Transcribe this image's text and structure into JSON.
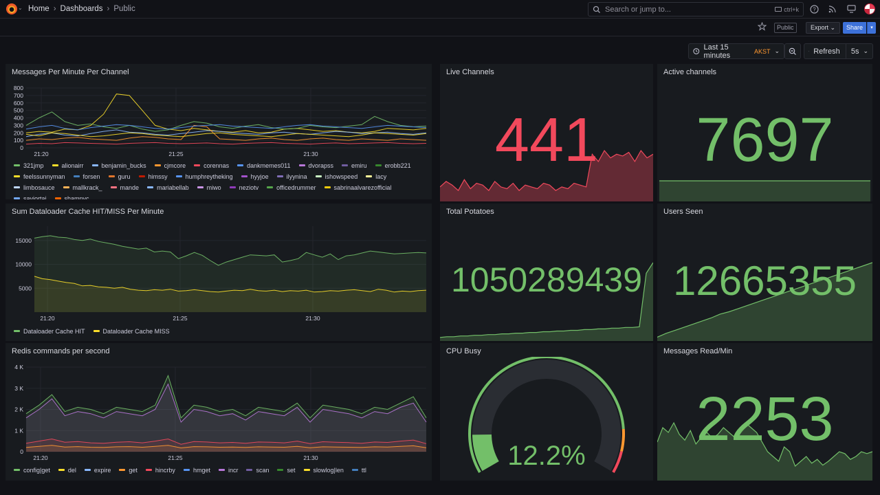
{
  "nav": {
    "breadcrumbs": [
      "Home",
      "Dashboards",
      "Public"
    ],
    "search_placeholder": "Search or jump to...",
    "search_shortcut": "ctrl+k"
  },
  "toolbar": {
    "public_tag": "Public",
    "export_label": "Export",
    "share_label": "Share",
    "time_range": "Last 15 minutes",
    "timezone": "AKST",
    "refresh_label": "Refresh",
    "refresh_interval": "5s"
  },
  "icons": [
    "grafana-logo-icon",
    "search-icon",
    "help-icon",
    "rss-icon",
    "monitor-icon",
    "star-icon",
    "clock-icon",
    "zoom-out-icon",
    "refresh-icon",
    "chevron-down-icon"
  ],
  "colors": {
    "red_stat": "#f2495c",
    "green_stat": "#73bf69",
    "gauge_orange": "#ff9830",
    "gauge_red": "#f2495c",
    "accent_blue": "#3d71d9"
  },
  "panels": {
    "messages": {
      "title": "Messages Per Minute Per Channel",
      "legend": [
        {
          "name": "321jmp",
          "color": "#73bf69"
        },
        {
          "name": "alionairr",
          "color": "#fade2a"
        },
        {
          "name": "benjamin_bucks",
          "color": "#8ab8ff"
        },
        {
          "name": "cjmcore",
          "color": "#ff9830"
        },
        {
          "name": "corennas",
          "color": "#f2495c"
        },
        {
          "name": "dankmemes011",
          "color": "#5794f2"
        },
        {
          "name": "dvorapss",
          "color": "#b877d9"
        },
        {
          "name": "emiru",
          "color": "#705da0"
        },
        {
          "name": "erobb221",
          "color": "#37872d"
        },
        {
          "name": "feelssunnyman",
          "color": "#fade2a"
        },
        {
          "name": "forsen",
          "color": "#447ebc"
        },
        {
          "name": "guru",
          "color": "#e0752d"
        },
        {
          "name": "himssy",
          "color": "#bf1b00"
        },
        {
          "name": "humphreytheking",
          "color": "#5794f2"
        },
        {
          "name": "hyyjoe",
          "color": "#a352cc"
        },
        {
          "name": "ilyynina",
          "color": "#806eb7"
        },
        {
          "name": "ishowspeed",
          "color": "#c8f2c2"
        },
        {
          "name": "lacy",
          "color": "#fff899"
        },
        {
          "name": "limbosauce",
          "color": "#c0d8ff"
        },
        {
          "name": "mallkrack_",
          "color": "#ffb357"
        },
        {
          "name": "mande",
          "color": "#ff7383"
        },
        {
          "name": "mariabellab",
          "color": "#8ab8ff"
        },
        {
          "name": "miwo",
          "color": "#ca95e5"
        },
        {
          "name": "neziotv",
          "color": "#8f3bb8"
        },
        {
          "name": "officedrummer",
          "color": "#56a64b"
        },
        {
          "name": "sabrinaalvarezofficial",
          "color": "#f2cc0c"
        },
        {
          "name": "saviortaj",
          "color": "#73a8f5"
        },
        {
          "name": "shamnyc",
          "color": "#fa6400"
        }
      ],
      "chart_data": {
        "type": "line",
        "ylim": [
          0,
          800
        ],
        "yticks": [
          "0",
          "100",
          "200",
          "300",
          "400",
          "500",
          "600",
          "700",
          "800"
        ],
        "xticks": [
          "21:20",
          "21:25",
          "21:30"
        ],
        "series": [
          {
            "name": "alionairr",
            "values": [
              200,
              220,
              210,
              250,
              240,
              300,
              450,
              720,
              700,
              500,
              300,
              250,
              230,
              260,
              240,
              220,
              210,
              230,
              200,
              210,
              250,
              260,
              240,
              220,
              230,
              210,
              200,
              220,
              260,
              250,
              240,
              260
            ]
          },
          {
            "name": "321jmp",
            "values": [
              300,
              400,
              480,
              350,
              300,
              320,
              280,
              260,
              300,
              250,
              220,
              240,
              300,
              350,
              330,
              280,
              260,
              290,
              310,
              270,
              250,
              260,
              300,
              280,
              270,
              290,
              310,
              420,
              350,
              300,
              280,
              290
            ]
          },
          {
            "name": "benjamin_bucks",
            "values": [
              150,
              180,
              200,
              170,
              160,
              190,
              220,
              240,
              210,
              200,
              180,
              170,
              190,
              210,
              230,
              220,
              200,
              190,
              180,
              200,
              210,
              190,
              180,
              200,
              220,
              210,
              190,
              200,
              210,
              190,
              180,
              200
            ]
          },
          {
            "name": "cjmcore",
            "values": [
              100,
              120,
              110,
              130,
              140,
              120,
              110,
              100,
              130,
              150,
              140,
              120,
              110,
              300,
              280,
              120,
              110,
              100,
              120,
              130,
              110,
              100,
              120,
              130,
              110,
              100,
              120,
              110,
              100,
              120,
              110,
              100
            ]
          },
          {
            "name": "corennas",
            "values": [
              50,
              60,
              55,
              70,
              65,
              60,
              55,
              50,
              60,
              65,
              70,
              60,
              55,
              60,
              65,
              55,
              50,
              60,
              65,
              70,
              60,
              55,
              50,
              60,
              65,
              55,
              60,
              65,
              70,
              60,
              55,
              60
            ]
          },
          {
            "name": "dankmemes011",
            "values": [
              250,
              280,
              300,
              260,
              240,
              270,
              290,
              310,
              300,
              280,
              260,
              250,
              270,
              290,
              300,
              310,
              290,
              280,
              270,
              260,
              280,
              300,
              310,
              290,
              280,
              270,
              260,
              280,
              300,
              290,
              280,
              270
            ]
          },
          {
            "name": "feelssunnyman",
            "values": [
              180,
              160,
              200,
              190,
              170,
              150,
              160,
              180,
              200,
              190,
              170,
              160,
              150,
              170,
              190,
              200,
              180,
              170,
              160,
              150,
              170,
              190,
              180,
              170,
              160,
              150,
              170,
              200,
              190,
              180,
              170,
              190
            ]
          }
        ]
      }
    },
    "live_channels": {
      "title": "Live Channels",
      "value": "441",
      "chart_data": {
        "type": "area",
        "values": [
          40,
          55,
          45,
          30,
          60,
          35,
          50,
          45,
          30,
          55,
          40,
          35,
          50,
          30,
          45,
          40,
          35,
          50,
          45,
          30,
          40,
          35,
          50,
          45,
          40,
          130,
          110,
          140,
          120,
          130,
          125,
          135,
          110,
          140,
          120,
          130
        ]
      }
    },
    "active_channels": {
      "title": "Active channels",
      "value": "7697",
      "chart_data": {
        "type": "area",
        "values": [
          50,
          50,
          50,
          50,
          50,
          50,
          50,
          50,
          50,
          50,
          50,
          50
        ]
      }
    },
    "dataloader": {
      "title": "Sum Dataloader Cache HIT/MISS Per Minute",
      "legend": [
        {
          "name": "Dataloader Cache HIT",
          "color": "#73bf69"
        },
        {
          "name": "Dataloader Cache MISS",
          "color": "#fade2a"
        }
      ],
      "chart_data": {
        "type": "line",
        "ylim": [
          0,
          18000
        ],
        "yticks": [
          "5000",
          "10000",
          "15000"
        ],
        "xticks": [
          "21:20",
          "21:25",
          "21:30"
        ],
        "series": [
          {
            "name": "Dataloader Cache HIT",
            "values": [
              15500,
              15800,
              16000,
              15700,
              15600,
              15200,
              15000,
              15300,
              14800,
              14500,
              14200,
              13800,
              13500,
              13200,
              13400,
              12600,
              12800,
              12600,
              11200,
              11800,
              12500,
              11900,
              10800,
              9800,
              10500,
              11000,
              11500,
              12000,
              11900,
              11800,
              12000,
              10500,
              10800,
              11200,
              12500,
              12000,
              11500,
              12200,
              11000,
              11800,
              12000,
              12400,
              12800,
              12600,
              12400,
              12200,
              12300,
              12400,
              12500,
              12400
            ]
          },
          {
            "name": "Dataloader Cache MISS",
            "values": [
              7500,
              7000,
              6800,
              6500,
              6200,
              6000,
              5500,
              5600,
              5300,
              5200,
              5000,
              5200,
              4800,
              4600,
              4500,
              4700,
              4600,
              4800,
              4400,
              4500,
              4700,
              4500,
              4300,
              4200,
              4400,
              4600,
              4500,
              4800,
              4500,
              4400,
              4600,
              4300,
              4500,
              4400,
              4600,
              4200,
              4300,
              4500,
              4400,
              4600,
              4700,
              4500,
              4300,
              4800,
              4600,
              4200,
              4400,
              4300,
              4500,
              4600
            ]
          }
        ]
      }
    },
    "total_potatoes": {
      "title": "Total Potatoes",
      "value": "1050289439",
      "chart_data": {
        "type": "area",
        "values": [
          5,
          6,
          6,
          7,
          7,
          8,
          8,
          9,
          9,
          10,
          10,
          11,
          11,
          12,
          12,
          13,
          13,
          14,
          14,
          15,
          15,
          16,
          16,
          17,
          17,
          18,
          18,
          19,
          19,
          20,
          95,
          110
        ]
      }
    },
    "users_seen": {
      "title": "Users Seen",
      "value": "12665355",
      "chart_data": {
        "type": "area",
        "values": [
          5,
          10,
          14,
          18,
          22,
          26,
          30,
          35,
          38,
          42,
          46,
          50,
          54,
          58,
          62,
          66,
          70,
          74,
          78,
          82,
          86,
          90,
          94,
          98,
          102
        ]
      }
    },
    "redis": {
      "title": "Redis commands per second",
      "legend": [
        {
          "name": "config|get",
          "color": "#73bf69"
        },
        {
          "name": "del",
          "color": "#fade2a"
        },
        {
          "name": "expire",
          "color": "#8ab8ff"
        },
        {
          "name": "get",
          "color": "#ff9830"
        },
        {
          "name": "hincrby",
          "color": "#f2495c"
        },
        {
          "name": "hmget",
          "color": "#5794f2"
        },
        {
          "name": "incr",
          "color": "#b877d9"
        },
        {
          "name": "scan",
          "color": "#705da0"
        },
        {
          "name": "set",
          "color": "#37872d"
        },
        {
          "name": "slowlog|len",
          "color": "#fade2a"
        },
        {
          "name": "ttl",
          "color": "#447ebc"
        }
      ],
      "chart_data": {
        "type": "area",
        "ylim": [
          0,
          4000
        ],
        "yticks": [
          "0",
          "1 K",
          "2 K",
          "3 K",
          "4 K"
        ],
        "xticks": [
          "21:20",
          "21:25",
          "21:30"
        ],
        "series": [
          {
            "name": "config|get",
            "values": [
              1800,
              2200,
              2700,
              1900,
              2100,
              2000,
              1800,
              2100,
              2000,
              1900,
              2200,
              3600,
              1600,
              2200,
              2100,
              1900,
              2000,
              1700,
              2100,
              2000,
              1900,
              2300,
              1600,
              2200,
              2100,
              2000,
              1800,
              2100,
              2000,
              2300,
              2600,
              1600
            ]
          },
          {
            "name": "incr",
            "values": [
              1600,
              2000,
              2500,
              1700,
              1900,
              1800,
              1600,
              1900,
              1800,
              1700,
              2000,
              3200,
              1400,
              2000,
              1900,
              1700,
              1800,
              1500,
              1900,
              1800,
              1700,
              2100,
              1400,
              2000,
              1900,
              1800,
              1600,
              1900,
              1800,
              2100,
              2300,
              1400
            ]
          },
          {
            "name": "hincrby",
            "values": [
              400,
              500,
              600,
              450,
              480,
              420,
              400,
              450,
              470,
              420,
              500,
              600,
              350,
              480,
              460,
              420,
              440,
              400,
              460,
              450,
              420,
              500,
              380,
              470,
              450,
              430,
              400,
              460,
              440,
              500,
              550,
              380
            ]
          },
          {
            "name": "get",
            "values": [
              200,
              250,
              300,
              220,
              240,
              210,
              200,
              230,
              240,
              210,
              250,
              300,
              180,
              240,
              230,
              210,
              220,
              200,
              230,
              220,
              210,
              250,
              190,
              230,
              220,
              210,
              200,
              230,
              220,
              250,
              280,
              190
            ]
          }
        ]
      }
    },
    "cpu_busy": {
      "title": "CPU Busy",
      "value": "12.2%",
      "gauge_value": 12.2,
      "gauge_max": 100
    },
    "messages_read": {
      "title": "Messages Read/Min",
      "value": "2253",
      "chart_data": {
        "type": "area",
        "values": [
          40,
          55,
          50,
          60,
          48,
          42,
          52,
          38,
          45,
          50,
          44,
          48,
          55,
          50,
          45,
          52,
          60,
          55,
          50,
          40,
          30,
          25,
          20,
          35,
          30,
          15,
          20,
          25,
          18,
          22,
          16,
          20,
          25,
          30,
          28,
          22,
          25,
          30,
          28,
          30
        ]
      }
    }
  }
}
